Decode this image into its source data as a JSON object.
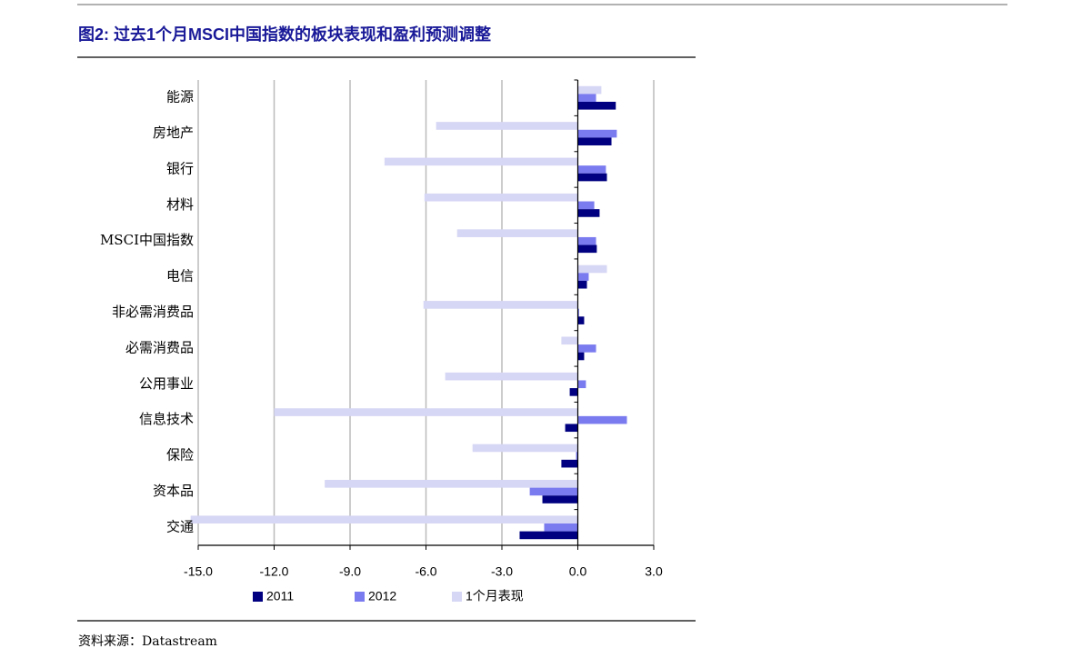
{
  "chart_data": {
    "type": "barh",
    "title": "图2: 过去1个月MSCI中国指数的板块表现和盈利预测调整",
    "source": "资料来源：Datastream",
    "categories": [
      "能源",
      "房地产",
      "银行",
      "材料",
      "MSCI中国指数",
      "电信",
      "非必需消费品",
      "必需消费品",
      "公用事业",
      "信息技术",
      "保险",
      "资本品",
      "交通"
    ],
    "series": [
      {
        "name": "1个月表现",
        "color": "#d6d6f5",
        "values": [
          0.93,
          -5.6,
          -7.64,
          -6.06,
          -4.77,
          1.15,
          -6.1,
          -0.65,
          -5.24,
          -12.0,
          -4.16,
          -10.0,
          -15.3
        ]
      },
      {
        "name": "2012",
        "color": "#7b7bf0",
        "values": [
          0.72,
          1.54,
          1.11,
          0.65,
          0.72,
          0.43,
          0.05,
          0.72,
          0.32,
          1.94,
          -0.07,
          -1.9,
          -1.33
        ]
      },
      {
        "name": "2011",
        "color": "#000080",
        "values": [
          1.5,
          1.33,
          1.15,
          0.86,
          0.75,
          0.36,
          0.25,
          0.25,
          -0.32,
          -0.5,
          -0.65,
          -1.4,
          -2.3
        ]
      }
    ],
    "legend_order": [
      2,
      1,
      0
    ],
    "xlim": [
      -15,
      3
    ],
    "xticks": [
      {
        "value": -15,
        "label": "-15.0"
      },
      {
        "value": -12,
        "label": "-12.0"
      },
      {
        "value": -9,
        "label": "-9.0"
      },
      {
        "value": -6,
        "label": "-6.0"
      },
      {
        "value": -3,
        "label": "-3.0"
      },
      {
        "value": 0,
        "label": "0.0"
      },
      {
        "value": 3,
        "label": "3.0"
      }
    ],
    "grid": true
  }
}
